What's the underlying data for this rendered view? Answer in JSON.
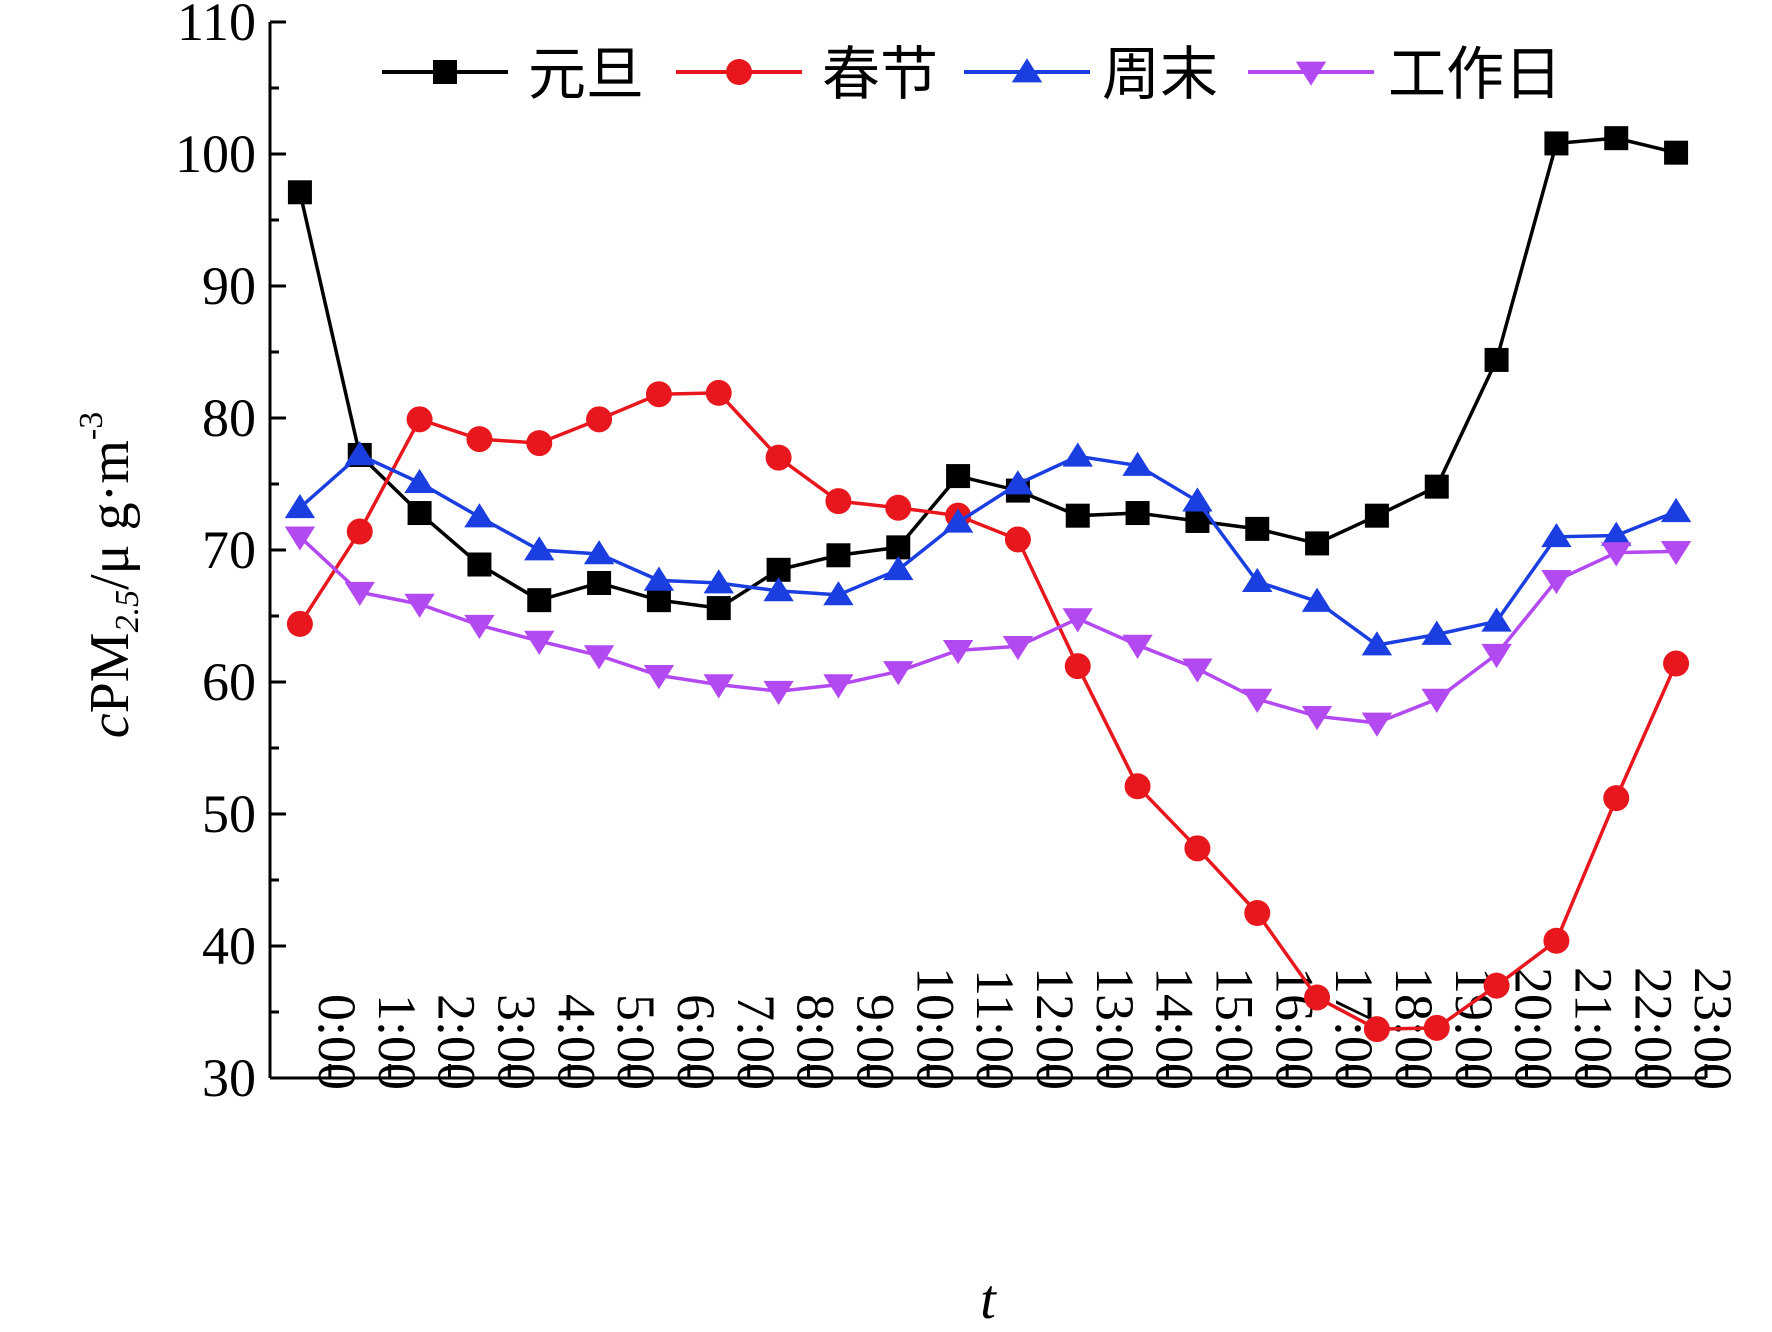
{
  "chart_data": {
    "type": "line",
    "xlabel": "t",
    "ylabel": {
      "italic": "c",
      "main": "PM",
      "sub": "2.5",
      "unit": "/μ g·m",
      "sup": "-3"
    },
    "ylim": [
      30,
      110
    ],
    "yticks": [
      30,
      40,
      50,
      60,
      70,
      80,
      90,
      100,
      110
    ],
    "categories": [
      "0:00",
      "1:00",
      "2:00",
      "3:00",
      "4:00",
      "5:00",
      "6:00",
      "7:00",
      "8:00",
      "9:00",
      "10:00",
      "11:00",
      "12:00",
      "13:00",
      "14:00",
      "15:00",
      "16:00",
      "17:00",
      "18:00",
      "19:00",
      "20:00",
      "21:00",
      "22:00",
      "23:00"
    ],
    "legend_position": "top",
    "grid": false,
    "series": [
      {
        "name": "元旦",
        "color": "#000000",
        "marker": "square",
        "values": [
          97.1,
          77.2,
          72.8,
          68.9,
          66.2,
          67.5,
          66.2,
          65.6,
          68.5,
          69.6,
          70.2,
          75.6,
          74.5,
          72.6,
          72.8,
          72.2,
          71.6,
          70.5,
          72.6,
          74.8,
          84.4,
          100.8,
          101.2,
          100.1
        ]
      },
      {
        "name": "春节",
        "color": "#e8171e",
        "marker": "circle",
        "values": [
          64.4,
          71.4,
          79.9,
          78.4,
          78.1,
          79.9,
          81.8,
          81.9,
          77.0,
          73.7,
          73.2,
          72.6,
          70.8,
          61.2,
          52.1,
          47.4,
          42.5,
          36.1,
          33.7,
          33.8,
          37.0,
          40.4,
          51.2,
          61.4
        ]
      },
      {
        "name": "周末",
        "color": "#1a3ee0",
        "marker": "triangle-up",
        "values": [
          73.2,
          77.2,
          75.1,
          72.5,
          70.0,
          69.7,
          67.7,
          67.5,
          66.9,
          66.6,
          68.5,
          72.1,
          75.0,
          77.1,
          76.4,
          73.7,
          67.6,
          66.1,
          62.8,
          63.6,
          64.6,
          71.0,
          71.1,
          72.9
        ]
      },
      {
        "name": "工作日",
        "color": "#b349f0",
        "marker": "triangle-down",
        "values": [
          71.0,
          66.8,
          65.9,
          64.3,
          63.1,
          62.0,
          60.5,
          59.8,
          59.3,
          59.8,
          60.8,
          62.4,
          62.7,
          64.8,
          62.8,
          61.0,
          58.7,
          57.4,
          56.9,
          58.7,
          62.1,
          67.7,
          69.8,
          69.9
        ]
      }
    ]
  }
}
